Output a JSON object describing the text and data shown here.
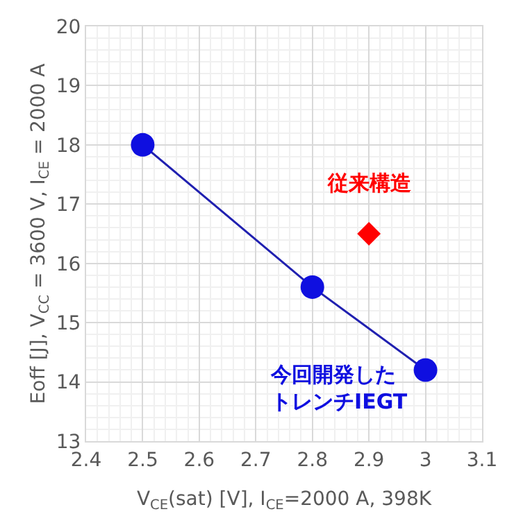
{
  "chart_data": {
    "type": "line",
    "xlabel": "V$_{CE}$(sat) [V], I$_{CE}$=2000 A, 398K",
    "ylabel": "Eoff [J], V$_{CC}$ = 3600 V, I$_{CE}$ = 2000 A",
    "series": [
      {
        "name": "今回開発したトレンチIEGT",
        "color": "#0f0fe0",
        "marker": "circle",
        "x": [
          2.5,
          2.8,
          3.0
        ],
        "values": [
          18,
          15.6,
          14.2
        ]
      },
      {
        "name": "従来構造",
        "color": "#ff0000",
        "type": "scatter",
        "marker": "diamond",
        "x": [
          2.9
        ],
        "values": [
          16.5
        ]
      }
    ],
    "xlim": [
      2.4,
      3.1
    ],
    "xticks": [
      2.4,
      2.5,
      2.6,
      2.7,
      2.8,
      2.9,
      3,
      3.1
    ],
    "ylim": [
      13,
      20
    ],
    "yticks": [
      13,
      14,
      15,
      16,
      17,
      18,
      19,
      20
    ],
    "grid": true,
    "legend": false
  }
}
